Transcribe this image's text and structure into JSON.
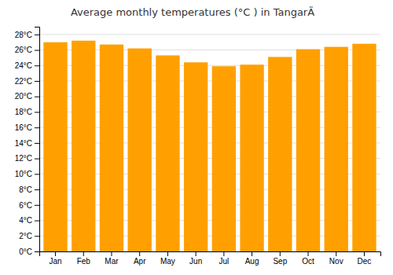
{
  "chart_data": {
    "type": "bar",
    "title": "Average monthly temperatures (°C ) in TangarÃ",
    "categories": [
      "Jan",
      "Feb",
      "Mar",
      "Apr",
      "May",
      "Jun",
      "Jul",
      "Aug",
      "Sep",
      "Oct",
      "Nov",
      "Dec"
    ],
    "values": [
      27.0,
      27.2,
      26.7,
      26.2,
      25.3,
      24.4,
      23.9,
      24.1,
      25.1,
      26.1,
      26.4,
      26.8
    ],
    "color": "#FFA000",
    "ylim": [
      0,
      29
    ],
    "yticks": [
      {
        "value": 0,
        "label": "0°C"
      },
      {
        "value": 2,
        "label": "2°C"
      },
      {
        "value": 4,
        "label": "4°C"
      },
      {
        "value": 6,
        "label": "6°C"
      },
      {
        "value": 8,
        "label": "8°C"
      },
      {
        "value": 10,
        "label": "10°C"
      },
      {
        "value": 12,
        "label": "12°C"
      },
      {
        "value": 14,
        "label": "14°C"
      },
      {
        "value": 16,
        "label": "16°C"
      },
      {
        "value": 18,
        "label": "18°C"
      },
      {
        "value": 20,
        "label": "20°C"
      },
      {
        "value": 22,
        "label": "22°C"
      },
      {
        "value": 24,
        "label": "24°C"
      },
      {
        "value": 26,
        "label": "26°C"
      },
      {
        "value": 28,
        "label": "28°C"
      }
    ],
    "grid": true
  }
}
